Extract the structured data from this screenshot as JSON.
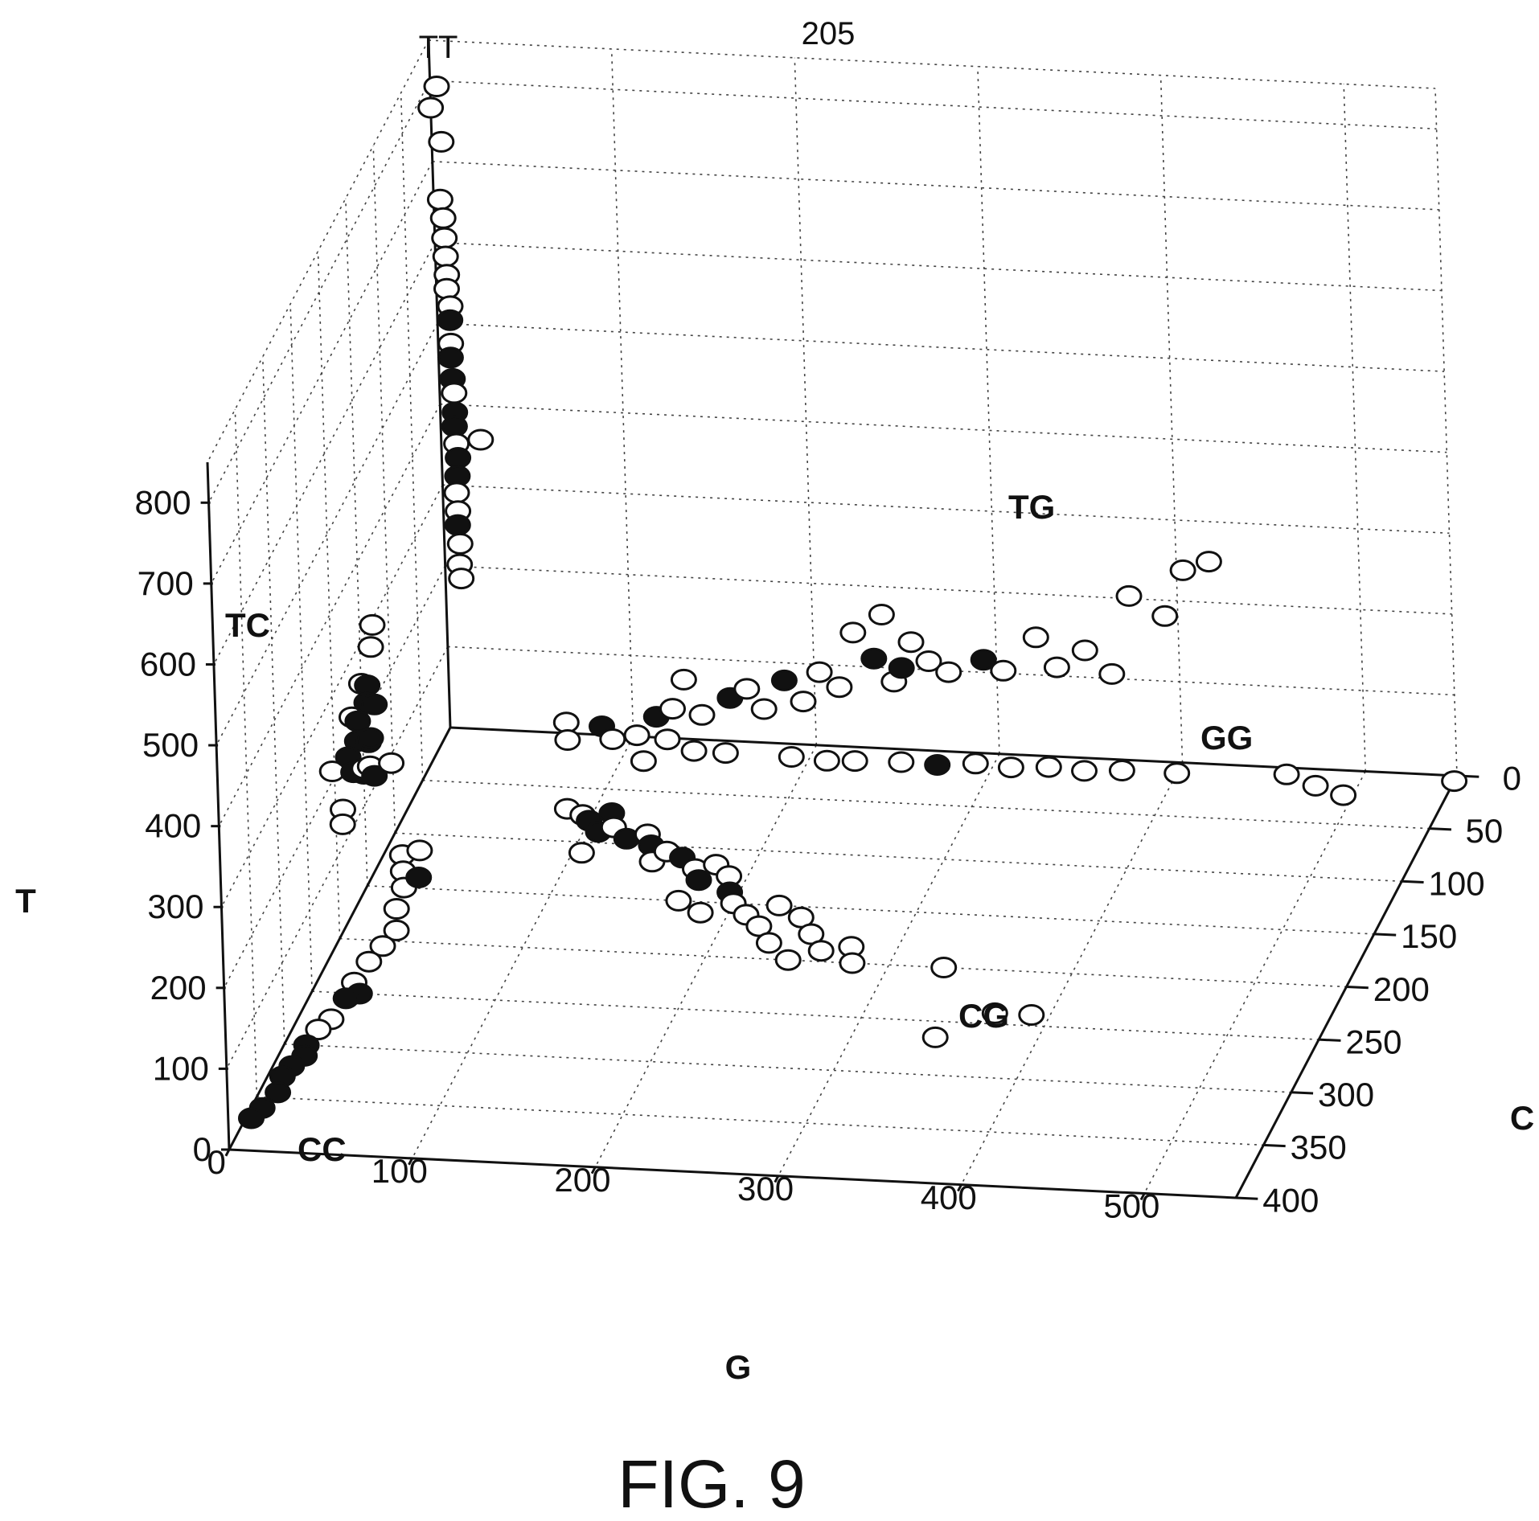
{
  "figure": {
    "reference_number": "205",
    "caption": "FIG. 9"
  },
  "colors": {
    "ink": "#111111",
    "open_fill": "#ffffff",
    "filled_fill": "#111111"
  },
  "chart_data": {
    "type": "scatter",
    "projection": "3d",
    "axes": {
      "x": {
        "label": "G",
        "ticks": [
          "0",
          "100",
          "200",
          "300",
          "400",
          "500"
        ],
        "range": [
          0,
          550
        ]
      },
      "y": {
        "label": "C",
        "ticks": [
          "0",
          "50",
          "100",
          "150",
          "200",
          "250",
          "300",
          "350",
          "400"
        ],
        "range": [
          0,
          400
        ]
      },
      "z": {
        "label": "T",
        "ticks": [
          "0",
          "100",
          "200",
          "300",
          "400",
          "500",
          "600",
          "700",
          "800"
        ],
        "range": [
          0,
          850
        ]
      }
    },
    "grid": true,
    "cluster_labels": [
      "TT",
      "TC",
      "TG",
      "GG",
      "CG",
      "CC"
    ],
    "marker_styles": [
      "open",
      "filled"
    ],
    "series": [
      {
        "cluster": "TT",
        "points": [
          {
            "x": 10,
            "y": 20,
            "z": 820,
            "s": "o"
          },
          {
            "x": 8,
            "y": 25,
            "z": 800,
            "s": "o"
          },
          {
            "x": 10,
            "y": 15,
            "z": 745,
            "s": "o"
          },
          {
            "x": 10,
            "y": 20,
            "z": 680,
            "s": "o"
          },
          {
            "x": 12,
            "y": 22,
            "z": 660,
            "s": "o"
          },
          {
            "x": 11,
            "y": 18,
            "z": 630,
            "s": "o"
          },
          {
            "x": 12,
            "y": 20,
            "z": 610,
            "s": "o"
          },
          {
            "x": 13,
            "y": 22,
            "z": 590,
            "s": "o"
          },
          {
            "x": 12,
            "y": 20,
            "z": 570,
            "s": "o"
          },
          {
            "x": 14,
            "y": 21,
            "z": 550,
            "s": "o"
          },
          {
            "x": 13,
            "y": 19,
            "z": 530,
            "s": "f"
          },
          {
            "x": 14,
            "y": 22,
            "z": 505,
            "s": "o"
          },
          {
            "x": 13,
            "y": 20,
            "z": 485,
            "s": "f"
          },
          {
            "x": 14,
            "y": 21,
            "z": 460,
            "s": "f"
          },
          {
            "x": 14,
            "y": 19,
            "z": 440,
            "s": "o"
          },
          {
            "x": 15,
            "y": 22,
            "z": 420,
            "s": "f"
          },
          {
            "x": 14,
            "y": 20,
            "z": 400,
            "s": "f"
          },
          {
            "x": 15,
            "y": 21,
            "z": 380,
            "s": "o"
          },
          {
            "x": 28,
            "y": 20,
            "z": 385,
            "s": "o"
          },
          {
            "x": 15,
            "y": 19,
            "z": 360,
            "s": "f"
          },
          {
            "x": 15,
            "y": 21,
            "z": 340,
            "s": "f"
          },
          {
            "x": 14,
            "y": 20,
            "z": 318,
            "s": "o"
          },
          {
            "x": 15,
            "y": 22,
            "z": 298,
            "s": "o"
          },
          {
            "x": 14,
            "y": 20,
            "z": 278,
            "s": "f"
          },
          {
            "x": 15,
            "y": 20,
            "z": 255,
            "s": "o"
          },
          {
            "x": 15,
            "y": 22,
            "z": 232,
            "s": "o"
          },
          {
            "x": 15,
            "y": 20,
            "z": 212,
            "s": "o"
          }
        ]
      },
      {
        "cluster": "TC",
        "points": [
          {
            "x": 4,
            "y": 140,
            "z": 310,
            "s": "o"
          },
          {
            "x": 6,
            "y": 150,
            "z": 296,
            "s": "o"
          },
          {
            "x": 5,
            "y": 165,
            "z": 270,
            "s": "o"
          },
          {
            "x": 4,
            "y": 180,
            "z": 248,
            "s": "o"
          },
          {
            "x": 2,
            "y": 210,
            "z": 220,
            "s": "o"
          },
          {
            "x": 5,
            "y": 155,
            "z": 255,
            "s": "f"
          },
          {
            "x": 6,
            "y": 160,
            "z": 240,
            "s": "f"
          },
          {
            "x": 4,
            "y": 170,
            "z": 230,
            "s": "f"
          },
          {
            "x": 7,
            "y": 150,
            "z": 225,
            "s": "f"
          },
          {
            "x": 5,
            "y": 175,
            "z": 212,
            "s": "f"
          },
          {
            "x": 3,
            "y": 185,
            "z": 205,
            "s": "f"
          },
          {
            "x": 8,
            "y": 165,
            "z": 198,
            "s": "f"
          },
          {
            "x": 6,
            "y": 155,
            "z": 190,
            "s": "f"
          },
          {
            "x": 4,
            "y": 180,
            "z": 180,
            "s": "f"
          },
          {
            "x": 8,
            "y": 175,
            "z": 172,
            "s": "f"
          },
          {
            "x": 5,
            "y": 165,
            "z": 165,
            "s": "o"
          },
          {
            "x": 10,
            "y": 170,
            "z": 175,
            "s": "o"
          },
          {
            "x": 4,
            "y": 200,
            "z": 160,
            "s": "o"
          },
          {
            "x": 2,
            "y": 195,
            "z": 135,
            "s": "o"
          },
          {
            "x": 9,
            "y": 160,
            "z": 150,
            "s": "f"
          },
          {
            "x": 12,
            "y": 140,
            "z": 140,
            "s": "o"
          }
        ]
      },
      {
        "cluster": "TG",
        "points": [
          {
            "x": 70,
            "y": 20,
            "z": 40,
            "s": "o"
          },
          {
            "x": 72,
            "y": 25,
            "z": 25,
            "s": "o"
          },
          {
            "x": 90,
            "y": 22,
            "z": 40,
            "s": "f"
          },
          {
            "x": 95,
            "y": 20,
            "z": 22,
            "s": "o"
          },
          {
            "x": 110,
            "y": 25,
            "z": 35,
            "s": "o"
          },
          {
            "x": 120,
            "y": 22,
            "z": 55,
            "s": "f"
          },
          {
            "x": 125,
            "y": 20,
            "z": 25,
            "s": "o"
          },
          {
            "x": 140,
            "y": 22,
            "z": 15,
            "s": "o"
          },
          {
            "x": 130,
            "y": 25,
            "z": 70,
            "s": "o"
          },
          {
            "x": 135,
            "y": 20,
            "z": 100,
            "s": "o"
          },
          {
            "x": 145,
            "y": 22,
            "z": 60,
            "s": "o"
          },
          {
            "x": 160,
            "y": 20,
            "z": 80,
            "s": "f"
          },
          {
            "x": 170,
            "y": 22,
            "z": 95,
            "s": "o"
          },
          {
            "x": 180,
            "y": 25,
            "z": 75,
            "s": "o"
          },
          {
            "x": 190,
            "y": 20,
            "z": 105,
            "s": "f"
          },
          {
            "x": 200,
            "y": 20,
            "z": 80,
            "s": "o"
          },
          {
            "x": 210,
            "y": 22,
            "z": 120,
            "s": "o"
          },
          {
            "x": 220,
            "y": 20,
            "z": 100,
            "s": "o"
          },
          {
            "x": 240,
            "y": 22,
            "z": 140,
            "s": "f"
          },
          {
            "x": 250,
            "y": 20,
            "z": 110,
            "s": "o"
          },
          {
            "x": 255,
            "y": 22,
            "z": 130,
            "s": "f"
          },
          {
            "x": 230,
            "y": 25,
            "z": 175,
            "s": "o"
          },
          {
            "x": 245,
            "y": 22,
            "z": 195,
            "s": "o"
          },
          {
            "x": 260,
            "y": 20,
            "z": 160,
            "s": "o"
          },
          {
            "x": 270,
            "y": 22,
            "z": 140,
            "s": "o"
          },
          {
            "x": 280,
            "y": 20,
            "z": 125,
            "s": "o"
          },
          {
            "x": 300,
            "y": 22,
            "z": 145,
            "s": "f"
          },
          {
            "x": 310,
            "y": 20,
            "z": 130,
            "s": "o"
          },
          {
            "x": 330,
            "y": 25,
            "z": 180,
            "s": "o"
          },
          {
            "x": 340,
            "y": 22,
            "z": 140,
            "s": "o"
          },
          {
            "x": 355,
            "y": 20,
            "z": 160,
            "s": "o"
          },
          {
            "x": 370,
            "y": 22,
            "z": 135,
            "s": "o"
          },
          {
            "x": 380,
            "y": 20,
            "z": 230,
            "s": "o"
          },
          {
            "x": 400,
            "y": 22,
            "z": 210,
            "s": "o"
          },
          {
            "x": 410,
            "y": 20,
            "z": 265,
            "s": "o"
          },
          {
            "x": 425,
            "y": 22,
            "z": 280,
            "s": "o"
          }
        ]
      },
      {
        "cluster": "GG",
        "points": [
          {
            "x": 110,
            "y": 15,
            "z": -10,
            "s": "o"
          },
          {
            "x": 155,
            "y": 15,
            "z": 5,
            "s": "o"
          },
          {
            "x": 190,
            "y": 12,
            "z": 0,
            "s": "o"
          },
          {
            "x": 210,
            "y": 14,
            "z": 0,
            "s": "o"
          },
          {
            "x": 225,
            "y": 13,
            "z": 0,
            "s": "o"
          },
          {
            "x": 250,
            "y": 12,
            "z": 0,
            "s": "o"
          },
          {
            "x": 270,
            "y": 13,
            "z": 0,
            "s": "f"
          },
          {
            "x": 290,
            "y": 10,
            "z": 0,
            "s": "o"
          },
          {
            "x": 310,
            "y": 12,
            "z": 0,
            "s": "o"
          },
          {
            "x": 330,
            "y": 10,
            "z": 0,
            "s": "o"
          },
          {
            "x": 350,
            "y": 12,
            "z": 0,
            "s": "o"
          },
          {
            "x": 370,
            "y": 10,
            "z": 0,
            "s": "o"
          },
          {
            "x": 400,
            "y": 10,
            "z": 0,
            "s": "o"
          },
          {
            "x": 460,
            "y": 10,
            "z": 5,
            "s": "o"
          },
          {
            "x": 475,
            "y": 8,
            "z": -10,
            "s": "o"
          },
          {
            "x": 490,
            "y": 8,
            "z": -20,
            "s": "o"
          },
          {
            "x": 550,
            "y": 5,
            "z": 0,
            "s": "o"
          }
        ]
      },
      {
        "cluster": "CG",
        "points": [
          {
            "x": 85,
            "y": 70,
            "z": 0,
            "s": "o"
          },
          {
            "x": 95,
            "y": 75,
            "z": 0,
            "s": "o"
          },
          {
            "x": 100,
            "y": 80,
            "z": 0,
            "s": "f"
          },
          {
            "x": 110,
            "y": 72,
            "z": 0,
            "s": "f"
          },
          {
            "x": 108,
            "y": 90,
            "z": 0,
            "s": "f"
          },
          {
            "x": 115,
            "y": 85,
            "z": 0,
            "s": "o"
          },
          {
            "x": 105,
            "y": 110,
            "z": 0,
            "s": "o"
          },
          {
            "x": 125,
            "y": 95,
            "z": 0,
            "s": "f"
          },
          {
            "x": 135,
            "y": 90,
            "z": 0,
            "s": "o"
          },
          {
            "x": 140,
            "y": 100,
            "z": 0,
            "s": "f"
          },
          {
            "x": 145,
            "y": 115,
            "z": 0,
            "s": "o"
          },
          {
            "x": 150,
            "y": 105,
            "z": 0,
            "s": "o"
          },
          {
            "x": 160,
            "y": 110,
            "z": 0,
            "s": "f"
          },
          {
            "x": 170,
            "y": 120,
            "z": 0,
            "s": "o"
          },
          {
            "x": 175,
            "y": 130,
            "z": 0,
            "s": "f"
          },
          {
            "x": 180,
            "y": 115,
            "z": 0,
            "s": "o"
          },
          {
            "x": 190,
            "y": 125,
            "z": 0,
            "s": "o"
          },
          {
            "x": 195,
            "y": 140,
            "z": 0,
            "s": "f"
          },
          {
            "x": 200,
            "y": 150,
            "z": 0,
            "s": "o"
          },
          {
            "x": 170,
            "y": 150,
            "z": 0,
            "s": "o"
          },
          {
            "x": 185,
            "y": 160,
            "z": 0,
            "s": "o"
          },
          {
            "x": 210,
            "y": 160,
            "z": 0,
            "s": "o"
          },
          {
            "x": 220,
            "y": 170,
            "z": 0,
            "s": "o"
          },
          {
            "x": 225,
            "y": 150,
            "z": 0,
            "s": "o"
          },
          {
            "x": 240,
            "y": 160,
            "z": 0,
            "s": "o"
          },
          {
            "x": 250,
            "y": 175,
            "z": 0,
            "s": "o"
          },
          {
            "x": 230,
            "y": 185,
            "z": 0,
            "s": "o"
          },
          {
            "x": 260,
            "y": 190,
            "z": 0,
            "s": "o"
          },
          {
            "x": 245,
            "y": 200,
            "z": 0,
            "s": "o"
          },
          {
            "x": 275,
            "y": 185,
            "z": 0,
            "s": "o"
          },
          {
            "x": 280,
            "y": 200,
            "z": 0,
            "s": "o"
          },
          {
            "x": 330,
            "y": 200,
            "z": 0,
            "s": "o"
          },
          {
            "x": 370,
            "y": 240,
            "z": 0,
            "s": "o"
          },
          {
            "x": 390,
            "y": 240,
            "z": 0,
            "s": "o"
          },
          {
            "x": 345,
            "y": 265,
            "z": 0,
            "s": "o"
          }
        ]
      },
      {
        "cluster": "CC",
        "points": [
          {
            "x": 10,
            "y": 120,
            "z": 0,
            "s": "o"
          },
          {
            "x": 18,
            "y": 115,
            "z": 0,
            "s": "o"
          },
          {
            "x": 15,
            "y": 135,
            "z": 0,
            "s": "o"
          },
          {
            "x": 20,
            "y": 150,
            "z": 0,
            "s": "o"
          },
          {
            "x": 25,
            "y": 140,
            "z": 0,
            "s": "f"
          },
          {
            "x": 22,
            "y": 170,
            "z": 0,
            "s": "o"
          },
          {
            "x": 28,
            "y": 190,
            "z": 0,
            "s": "o"
          },
          {
            "x": 25,
            "y": 205,
            "z": 0,
            "s": "o"
          },
          {
            "x": 22,
            "y": 220,
            "z": 0,
            "s": "o"
          },
          {
            "x": 20,
            "y": 240,
            "z": 0,
            "s": "o"
          },
          {
            "x": 26,
            "y": 250,
            "z": 0,
            "s": "f"
          },
          {
            "x": 20,
            "y": 255,
            "z": 0,
            "s": "f"
          },
          {
            "x": 18,
            "y": 275,
            "z": 0,
            "s": "o"
          },
          {
            "x": 14,
            "y": 285,
            "z": 0,
            "s": "o"
          },
          {
            "x": 12,
            "y": 300,
            "z": 0,
            "s": "f"
          },
          {
            "x": 14,
            "y": 310,
            "z": 0,
            "s": "f"
          },
          {
            "x": 10,
            "y": 320,
            "z": 0,
            "s": "f"
          },
          {
            "x": 8,
            "y": 330,
            "z": 0,
            "s": "f"
          },
          {
            "x": 10,
            "y": 345,
            "z": 0,
            "s": "f"
          },
          {
            "x": 6,
            "y": 360,
            "z": 0,
            "s": "f"
          },
          {
            "x": 3,
            "y": 370,
            "z": 0,
            "s": "f"
          }
        ]
      }
    ]
  }
}
